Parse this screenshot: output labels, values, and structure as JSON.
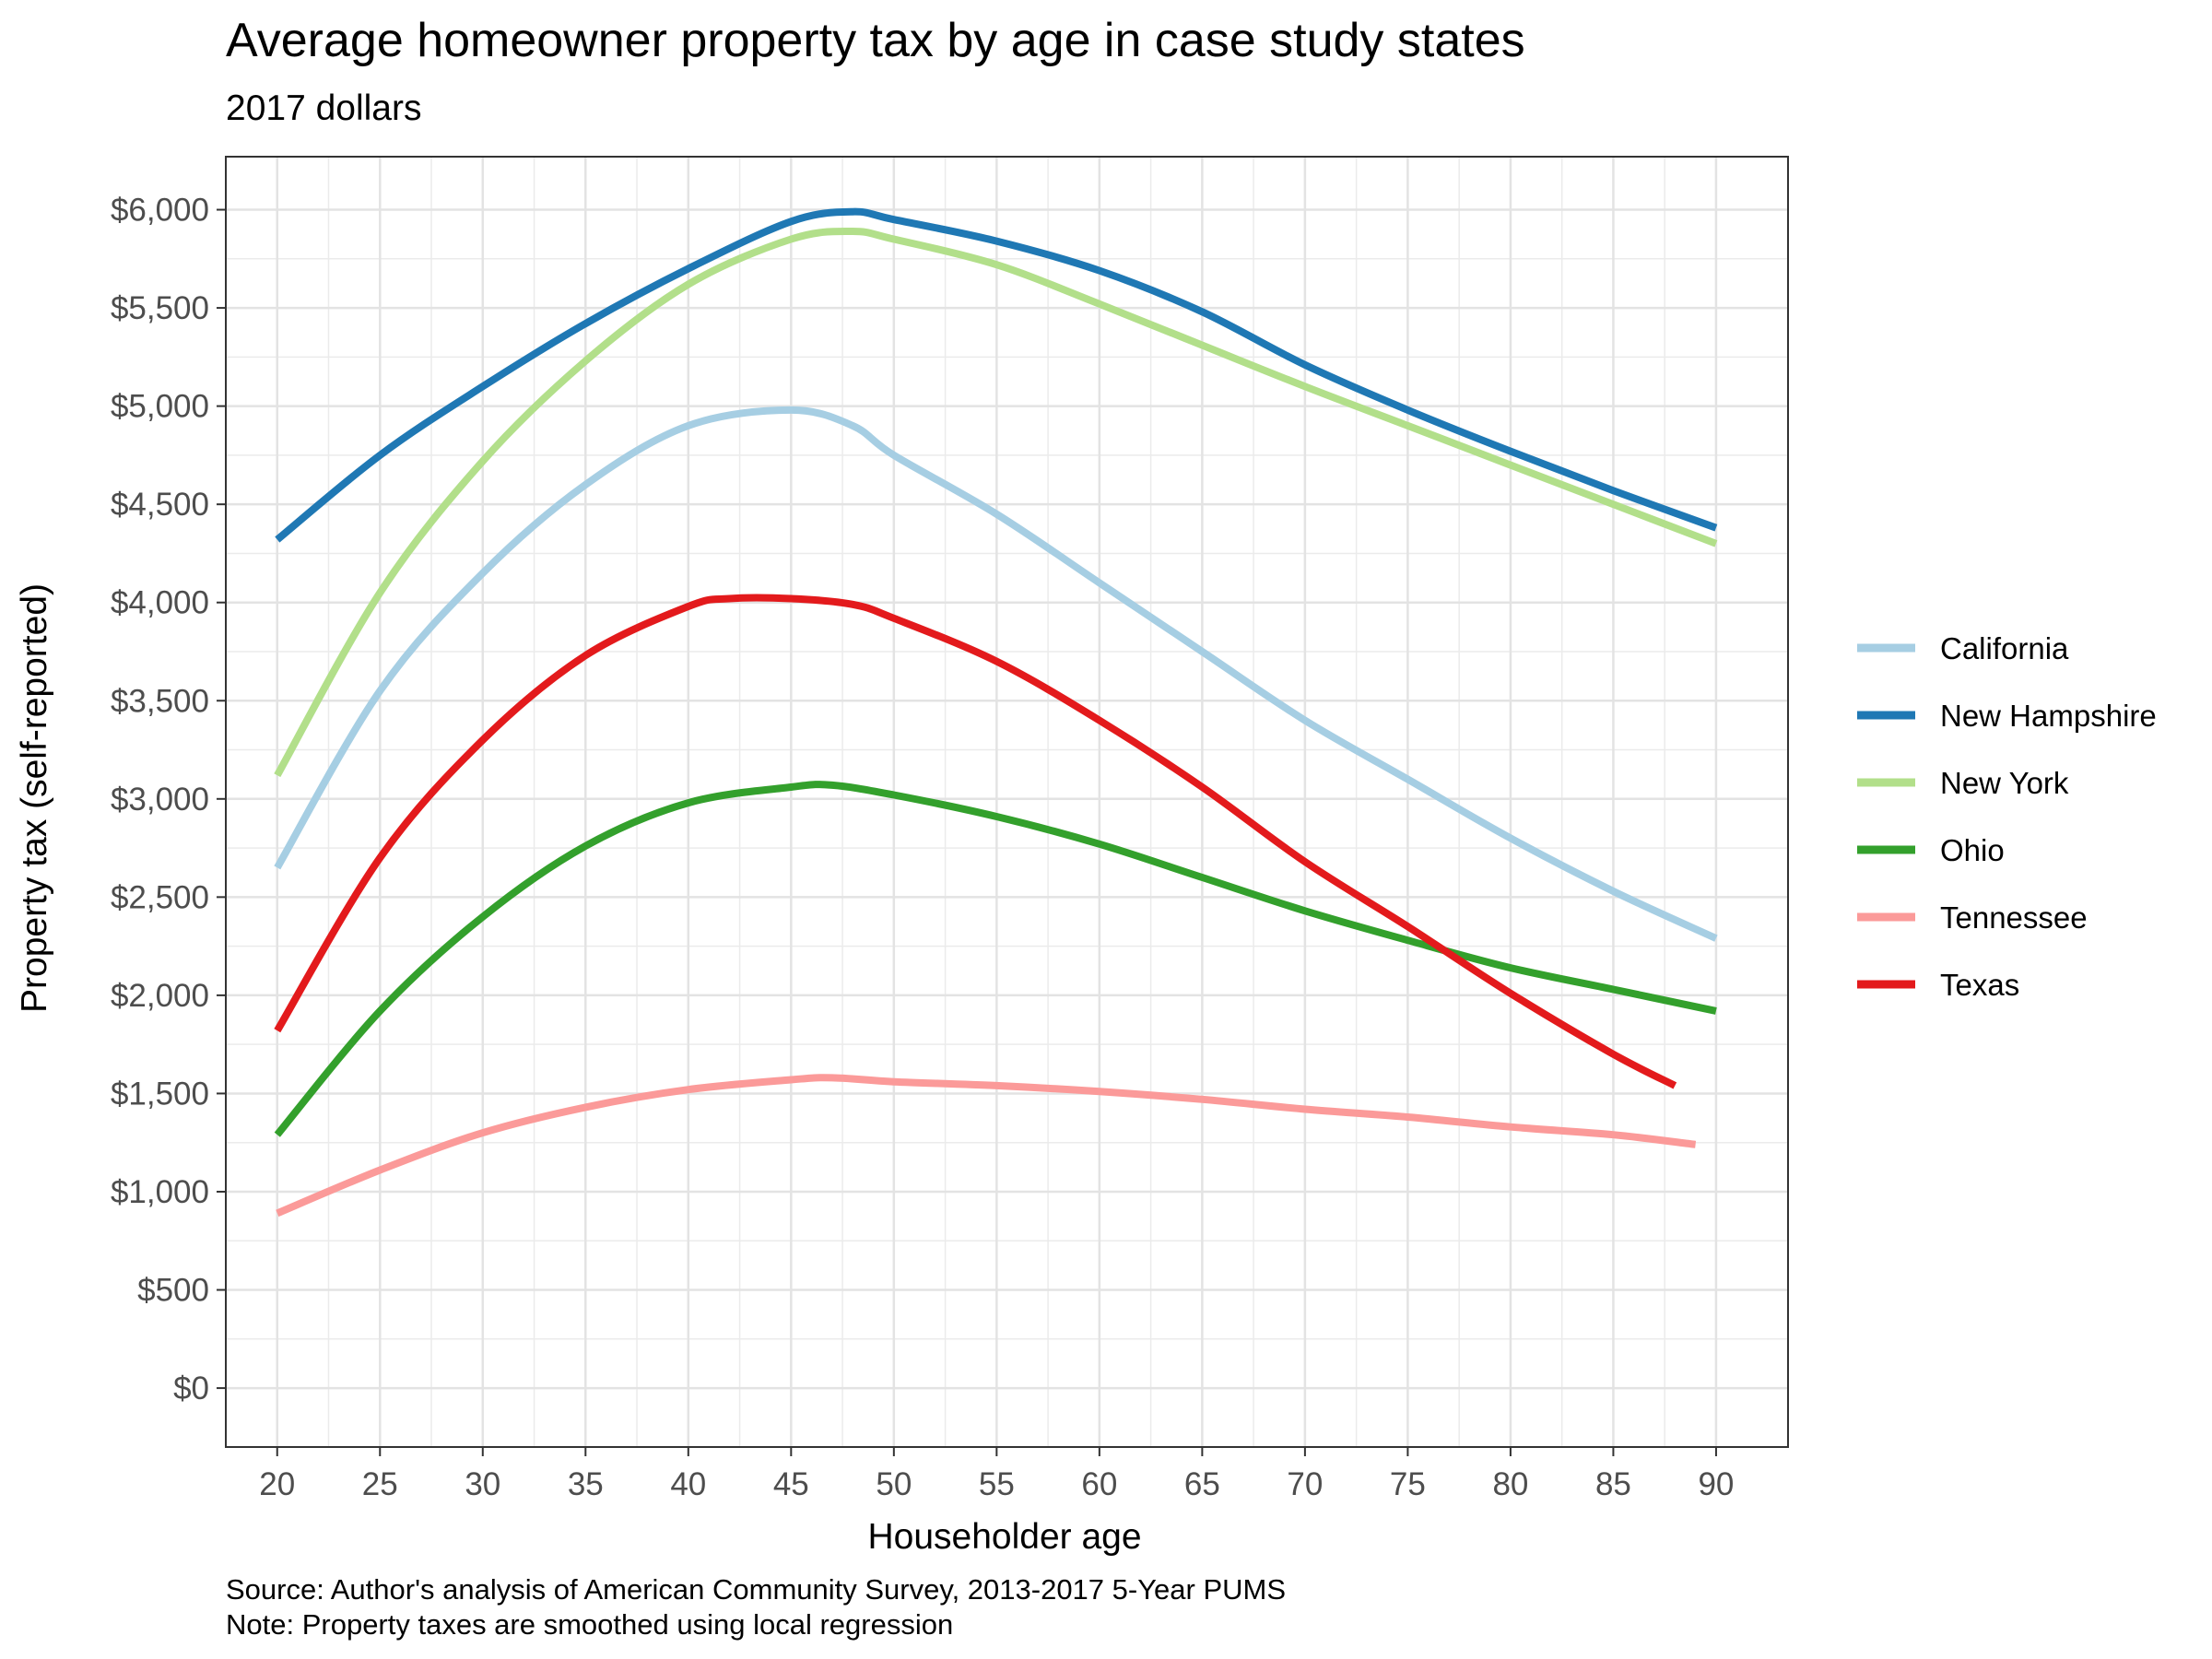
{
  "chart_data": {
    "type": "line",
    "title": "Average homeowner property tax by age in case study states",
    "subtitle": "2017 dollars",
    "xlabel": "Householder age",
    "ylabel": "Property tax (self-reported)",
    "xlim": [
      17.5,
      93.5
    ],
    "ylim": [
      -300,
      6270
    ],
    "x_ticks": [
      20,
      25,
      30,
      35,
      40,
      45,
      50,
      55,
      60,
      65,
      70,
      75,
      80,
      85,
      90
    ],
    "y_ticks": [
      0,
      500,
      1000,
      1500,
      2000,
      2500,
      3000,
      3500,
      4000,
      4500,
      5000,
      5500,
      6000
    ],
    "y_tick_labels": [
      "$0",
      "$500",
      "$1,000",
      "$1,500",
      "$2,000",
      "$2,500",
      "$3,000",
      "$3,500",
      "$4,000",
      "$4,500",
      "$5,000",
      "$5,500",
      "$6,000"
    ],
    "grid": true,
    "legend_position": "right",
    "series": [
      {
        "name": "California",
        "color": "#a6cee3",
        "x": [
          20,
          25,
          30,
          35,
          40,
          45,
          48,
          50,
          55,
          60,
          65,
          70,
          75,
          80,
          85,
          90
        ],
        "y": [
          2650,
          3550,
          4150,
          4600,
          4900,
          4980,
          4900,
          4750,
          4450,
          4100,
          3750,
          3400,
          3100,
          2800,
          2530,
          2290
        ]
      },
      {
        "name": "New Hampshire",
        "color": "#1f78b4",
        "x": [
          20,
          25,
          30,
          35,
          40,
          45,
          48,
          50,
          55,
          60,
          65,
          70,
          75,
          80,
          85,
          90
        ],
        "y": [
          4320,
          4750,
          5100,
          5420,
          5700,
          5940,
          5990,
          5950,
          5840,
          5690,
          5480,
          5210,
          4980,
          4770,
          4570,
          4380
        ]
      },
      {
        "name": "New York",
        "color": "#b2df8a",
        "x": [
          20,
          25,
          30,
          35,
          40,
          45,
          48,
          50,
          55,
          60,
          65,
          70,
          75,
          80,
          85,
          90
        ],
        "y": [
          3120,
          4050,
          4720,
          5230,
          5620,
          5850,
          5890,
          5850,
          5720,
          5520,
          5310,
          5100,
          4900,
          4700,
          4500,
          4300
        ]
      },
      {
        "name": "Ohio",
        "color": "#33a02c",
        "x": [
          20,
          25,
          30,
          35,
          40,
          45,
          47,
          50,
          55,
          60,
          65,
          70,
          75,
          80,
          85,
          90
        ],
        "y": [
          1290,
          1920,
          2400,
          2760,
          2980,
          3060,
          3070,
          3020,
          2910,
          2770,
          2600,
          2430,
          2280,
          2140,
          2030,
          1920
        ]
      },
      {
        "name": "Tennessee",
        "color": "#fb9a99",
        "x": [
          20,
          25,
          30,
          35,
          40,
          45,
          47,
          50,
          55,
          60,
          65,
          70,
          75,
          80,
          85,
          89
        ],
        "y": [
          890,
          1110,
          1300,
          1430,
          1520,
          1570,
          1580,
          1560,
          1540,
          1510,
          1470,
          1420,
          1380,
          1330,
          1290,
          1240
        ]
      },
      {
        "name": "Texas",
        "color": "#e31a1c",
        "x": [
          20,
          25,
          30,
          35,
          40,
          42,
          45,
          48,
          50,
          55,
          60,
          65,
          70,
          75,
          80,
          85,
          88
        ],
        "y": [
          1820,
          2700,
          3300,
          3730,
          3980,
          4020,
          4020,
          3990,
          3920,
          3700,
          3400,
          3060,
          2680,
          2350,
          2010,
          1700,
          1540
        ]
      }
    ]
  },
  "caption": {
    "source": "Source: Author's analysis of American Community Survey, 2013-2017 5-Year PUMS",
    "note": "Note: Property taxes are smoothed using local regression"
  }
}
